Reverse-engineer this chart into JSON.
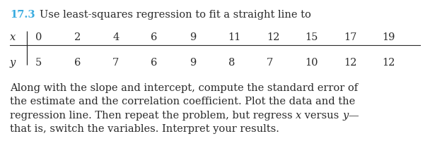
{
  "problem_number": "17.3",
  "problem_number_color": "#3aace0",
  "title_text": "Use least-squares regression to fit a straight line to",
  "x_label": "x",
  "y_label": "y",
  "x_values": [
    0,
    2,
    4,
    6,
    9,
    11,
    12,
    15,
    17,
    19
  ],
  "y_values": [
    5,
    6,
    7,
    6,
    9,
    8,
    7,
    10,
    12,
    12
  ],
  "body_text_line1": "Along with the slope and intercept, compute the standard error of",
  "body_text_line2": "the estimate and the correlation coefficient. Plot the data and the",
  "body_text_line3a": "regression line. Then repeat the problem, but regress ",
  "body_text_line3b": "x",
  "body_text_line3c": " versus ",
  "body_text_line3d": "y",
  "body_text_line3e": "—",
  "body_text_line4": "that is, switch the variables. Interpret your results.",
  "background_color": "#ffffff",
  "text_color": "#2a2a2a",
  "font_size_header": 10.5,
  "font_size_table": 10.5,
  "font_size_body": 10.5
}
